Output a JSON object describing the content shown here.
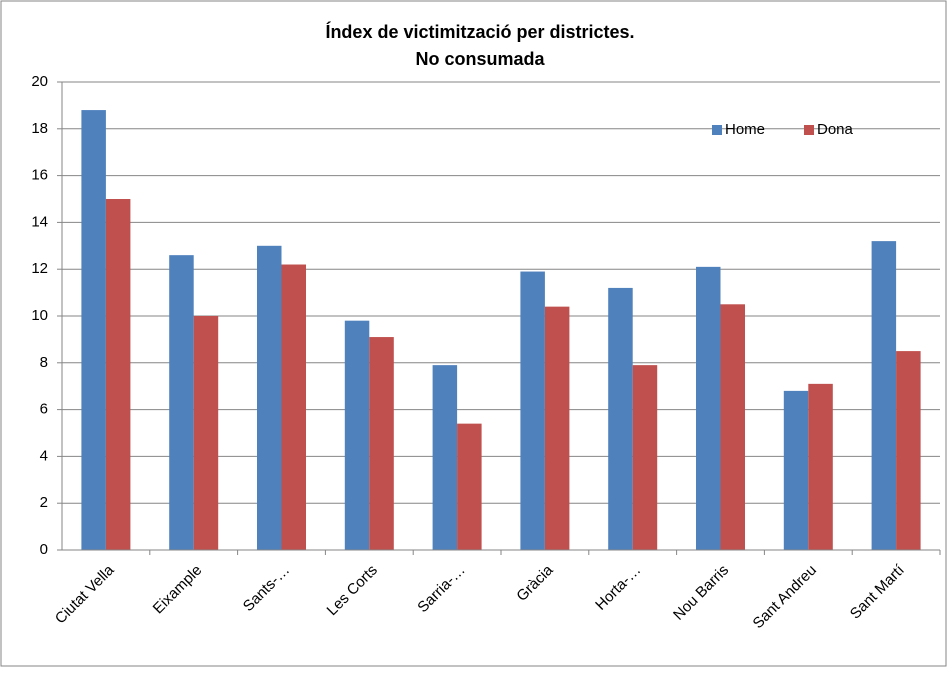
{
  "chart_data": {
    "type": "bar",
    "title": "Índex de victimització per districtes.",
    "subtitle": "No consumada",
    "categories": [
      "Ciutat Vella",
      "Eixample",
      "Sants-…",
      "Les Corts",
      "Sarria-…",
      "Gràcia",
      "Horta-…",
      "Nou Barris",
      "Sant Andreu",
      "Sant Martí"
    ],
    "series": [
      {
        "name": "Home",
        "color": "#4f81bd",
        "values": [
          18.8,
          12.6,
          13.0,
          9.8,
          7.9,
          11.9,
          11.2,
          12.1,
          6.8,
          13.2
        ]
      },
      {
        "name": "Dona",
        "color": "#c0504d",
        "values": [
          15.0,
          10.0,
          12.2,
          9.1,
          5.4,
          10.4,
          7.9,
          10.5,
          7.1,
          8.5
        ]
      }
    ],
    "ylim": [
      0,
      20
    ],
    "yticks": [
      0,
      2,
      4,
      6,
      8,
      10,
      12,
      14,
      16,
      18,
      20
    ],
    "grid": true,
    "legend": "top-right"
  }
}
